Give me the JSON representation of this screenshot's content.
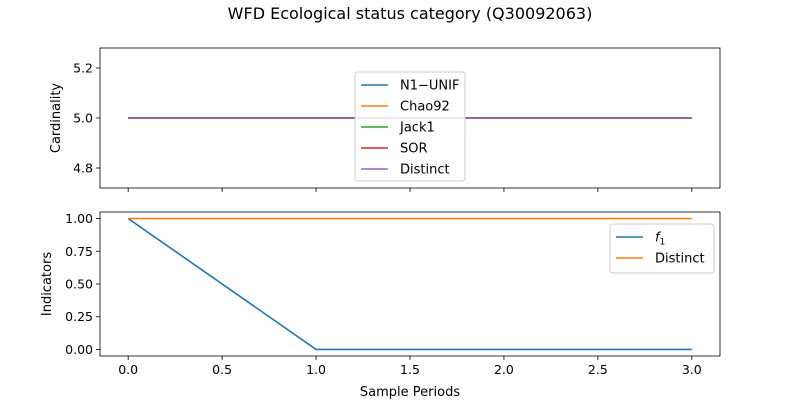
{
  "figure_title": "WFD Ecological status category (Q30092063)",
  "chart_data": [
    {
      "type": "line",
      "ylabel": "Cardinality",
      "xlim": [
        -0.15,
        3.15
      ],
      "ylim": [
        4.72,
        5.28
      ],
      "xticks": [],
      "yticks": [
        4.8,
        5.0,
        5.2
      ],
      "ytick_labels": [
        "4.8",
        "5.0",
        "5.2"
      ],
      "legend_position": "center",
      "x": [
        0,
        1,
        2,
        3
      ],
      "series": [
        {
          "name": "N1−UNIF",
          "color": "#1f77b4",
          "values": [
            5,
            5,
            5,
            5
          ]
        },
        {
          "name": "Chao92",
          "color": "#ff7f0e",
          "values": [
            5,
            5,
            5,
            5
          ]
        },
        {
          "name": "Jack1",
          "color": "#2ca02c",
          "values": [
            5,
            5,
            5,
            5
          ]
        },
        {
          "name": "SOR",
          "color": "#d62728",
          "values": [
            5,
            5,
            5,
            5
          ]
        },
        {
          "name": "Distinct",
          "color": "#9467bd",
          "values": [
            5,
            5,
            5,
            5
          ]
        }
      ]
    },
    {
      "type": "line",
      "xlabel": "Sample Periods",
      "ylabel": "Indicators",
      "xlim": [
        -0.15,
        3.15
      ],
      "ylim": [
        -0.05,
        1.05
      ],
      "xticks": [
        0.0,
        0.5,
        1.0,
        1.5,
        2.0,
        2.5,
        3.0
      ],
      "xtick_labels": [
        "0.0",
        "0.5",
        "1.0",
        "1.5",
        "2.0",
        "2.5",
        "3.0"
      ],
      "yticks": [
        0.0,
        0.25,
        0.5,
        0.75,
        1.0
      ],
      "ytick_labels": [
        "0.00",
        "0.25",
        "0.50",
        "0.75",
        "1.00"
      ],
      "legend_position": "upper right",
      "x": [
        0,
        1,
        2,
        3
      ],
      "series": [
        {
          "name": "f1",
          "name_main": "f",
          "name_sub": "1",
          "color": "#1f77b4",
          "values": [
            1,
            0,
            0,
            0
          ]
        },
        {
          "name": "Distinct",
          "color": "#ff7f0e",
          "values": [
            1,
            1,
            1,
            1
          ]
        }
      ]
    }
  ]
}
